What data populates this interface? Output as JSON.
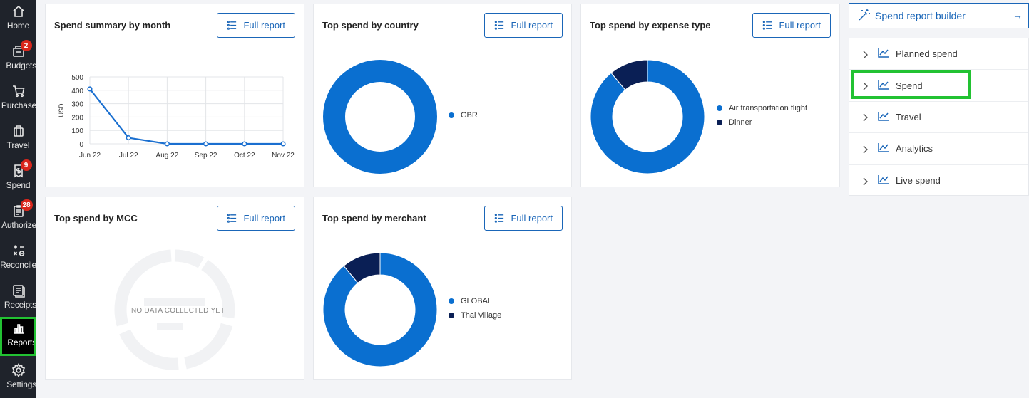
{
  "sidebar": {
    "items": [
      {
        "label": "Home",
        "icon": "home-icon"
      },
      {
        "label": "Budgets",
        "icon": "budgets-icon",
        "badge": "2"
      },
      {
        "label": "Purchase",
        "icon": "cart-icon"
      },
      {
        "label": "Travel",
        "icon": "suitcase-icon"
      },
      {
        "label": "Spend",
        "icon": "receipt-dollar-icon",
        "badge": "9"
      },
      {
        "label": "Authorize",
        "icon": "clipboard-icon",
        "badge": "28"
      },
      {
        "label": "Reconcile",
        "icon": "math-ops-icon"
      },
      {
        "label": "Receipts",
        "icon": "receipts-icon"
      },
      {
        "label": "Reports",
        "icon": "bar-chart-icon"
      },
      {
        "label": "Settings",
        "icon": "gear-icon"
      }
    ],
    "active": "Reports"
  },
  "cards": {
    "monthly": {
      "title": "Spend summary by month",
      "button": "Full report"
    },
    "country": {
      "title": "Top spend by country",
      "button": "Full report"
    },
    "expense": {
      "title": "Top spend by expense type",
      "button": "Full report"
    },
    "mcc": {
      "title": "Top spend by MCC",
      "button": "Full report",
      "empty_text": "NO DATA COLLECTED YET"
    },
    "merchant": {
      "title": "Top spend by merchant",
      "button": "Full report"
    }
  },
  "right_panel": {
    "builder_label": "Spend report builder",
    "builder_arrow": "→",
    "items": [
      {
        "label": "Planned spend"
      },
      {
        "label": "Spend"
      },
      {
        "label": "Travel"
      },
      {
        "label": "Analytics"
      },
      {
        "label": "Live spend"
      }
    ],
    "highlighted": "Spend"
  },
  "colors": {
    "primary": "#1a66b8",
    "slice_blue": "#0a6fd0",
    "slice_navy": "#0a1f55",
    "highlight": "#22c232",
    "badge": "#d9261c"
  },
  "chart_data": [
    {
      "type": "line",
      "title": "Spend summary by month",
      "ylabel": "USD",
      "categories": [
        "Jun 22",
        "Jul 22",
        "Aug 22",
        "Sep 22",
        "Oct 22",
        "Nov 22"
      ],
      "values": [
        410,
        45,
        0,
        0,
        0,
        0
      ],
      "yticks": [
        0,
        100,
        200,
        300,
        400,
        500
      ],
      "ylim": [
        0,
        500
      ],
      "grid": true
    },
    {
      "type": "pie",
      "title": "Top spend by country",
      "labels": [
        "GBR"
      ],
      "values": [
        100
      ],
      "legend": "right"
    },
    {
      "type": "pie",
      "title": "Top spend by expense type",
      "labels": [
        "Air transportation flight",
        "Dinner"
      ],
      "values": [
        89,
        11
      ],
      "legend": "right"
    },
    {
      "type": "pie",
      "title": "Top spend by merchant",
      "labels": [
        "GLOBAL",
        "Thai Village"
      ],
      "values": [
        89,
        11
      ],
      "legend": "right"
    }
  ]
}
